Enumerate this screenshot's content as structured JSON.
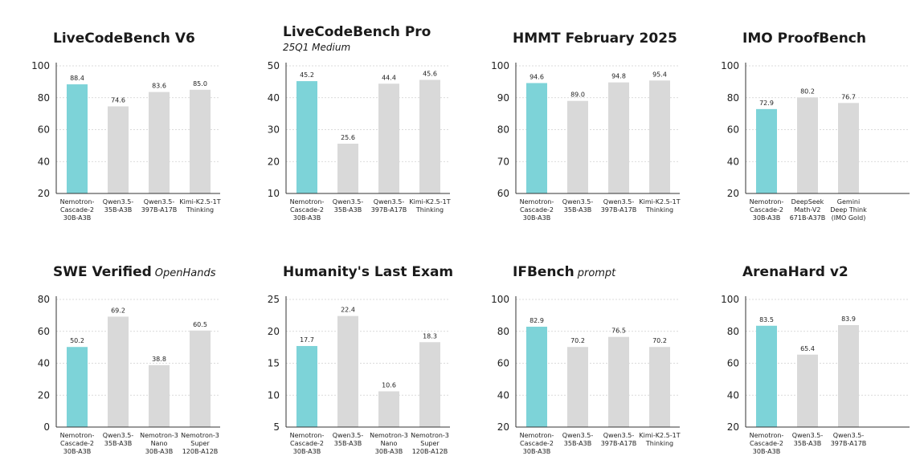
{
  "colors": {
    "highlight": "#7dd3d8",
    "other": "#d9d9d9",
    "grid": "#cfcfcf",
    "axis": "#333333"
  },
  "chart_data": [
    {
      "type": "bar",
      "title": "LiveCodeBench V6",
      "subtitle": "",
      "subtitle_line2": "",
      "categories": [
        [
          "Nemotron-",
          "Cascade-2",
          "30B-A3B"
        ],
        [
          "Qwen3.5-",
          "35B-A3B"
        ],
        [
          "Qwen3.5-",
          "397B-A17B"
        ],
        [
          "Kimi-K2.5-1T",
          "Thinking"
        ]
      ],
      "values": [
        88.4,
        74.6,
        83.6,
        85.0
      ],
      "value_labels": [
        "88.4",
        "74.6",
        "83.6",
        "85.0"
      ],
      "highlight_index": 0,
      "ylim": [
        20,
        100
      ],
      "yticks": [
        20,
        40,
        60,
        80,
        100
      ]
    },
    {
      "type": "bar",
      "title": "LiveCodeBench Pro",
      "subtitle": "",
      "subtitle_line2": "25Q1 Medium",
      "categories": [
        [
          "Nemotron-",
          "Cascade-2",
          "30B-A3B"
        ],
        [
          "Qwen3.5-",
          "35B-A3B"
        ],
        [
          "Qwen3.5-",
          "397B-A17B"
        ],
        [
          "Kimi-K2.5-1T",
          "Thinking"
        ]
      ],
      "values": [
        45.2,
        25.6,
        44.4,
        45.6
      ],
      "value_labels": [
        "45.2",
        "25.6",
        "44.4",
        "45.6"
      ],
      "highlight_index": 0,
      "ylim": [
        10,
        50
      ],
      "yticks": [
        10,
        20,
        30,
        40,
        50
      ]
    },
    {
      "type": "bar",
      "title": "HMMT February 2025",
      "subtitle": "",
      "subtitle_line2": "",
      "categories": [
        [
          "Nemotron-",
          "Cascade-2",
          "30B-A3B"
        ],
        [
          "Qwen3.5-",
          "35B-A3B"
        ],
        [
          "Qwen3.5-",
          "397B-A17B"
        ],
        [
          "Kimi-K2.5-1T",
          "Thinking"
        ]
      ],
      "values": [
        94.6,
        89.0,
        94.8,
        95.4
      ],
      "value_labels": [
        "94.6",
        "89.0",
        "94.8",
        "95.4"
      ],
      "highlight_index": 0,
      "ylim": [
        60,
        100
      ],
      "yticks": [
        60,
        70,
        80,
        90,
        100
      ]
    },
    {
      "type": "bar",
      "title": "IMO ProofBench",
      "subtitle": "",
      "subtitle_line2": "",
      "categories": [
        [
          "Nemotron-",
          "Cascade-2",
          "30B-A3B"
        ],
        [
          "DeepSeek",
          "Math-V2",
          "671B-A37B"
        ],
        [
          "Gemini",
          "Deep Think",
          "(IMO Gold)"
        ]
      ],
      "values": [
        72.9,
        80.2,
        76.7
      ],
      "value_labels": [
        "72.9",
        "80.2",
        "76.7"
      ],
      "highlight_index": 0,
      "ylim": [
        20,
        100
      ],
      "yticks": [
        20,
        40,
        60,
        80,
        100
      ]
    },
    {
      "type": "bar",
      "title": "SWE Verified",
      "subtitle": "OpenHands",
      "subtitle_line2": "",
      "categories": [
        [
          "Nemotron-",
          "Cascade-2",
          "30B-A3B"
        ],
        [
          "Qwen3.5-",
          "35B-A3B"
        ],
        [
          "Nemotron-3",
          "Nano",
          "30B-A3B"
        ],
        [
          "Nemotron-3",
          "Super",
          "120B-A12B"
        ]
      ],
      "values": [
        50.2,
        69.2,
        38.8,
        60.5
      ],
      "value_labels": [
        "50.2",
        "69.2",
        "38.8",
        "60.5"
      ],
      "highlight_index": 0,
      "ylim": [
        0,
        80
      ],
      "yticks": [
        0,
        20,
        40,
        60,
        80
      ]
    },
    {
      "type": "bar",
      "title": "Humanity's Last Exam",
      "subtitle": "",
      "subtitle_line2": "",
      "categories": [
        [
          "Nemotron-",
          "Cascade-2",
          "30B-A3B"
        ],
        [
          "Qwen3.5-",
          "35B-A3B"
        ],
        [
          "Nemotron-3",
          "Nano",
          "30B-A3B"
        ],
        [
          "Nemotron-3",
          "Super",
          "120B-A12B"
        ]
      ],
      "values": [
        17.7,
        22.4,
        10.6,
        18.3
      ],
      "value_labels": [
        "17.7",
        "22.4",
        "10.6",
        "18.3"
      ],
      "highlight_index": 0,
      "ylim": [
        5,
        25
      ],
      "yticks": [
        5,
        10,
        15,
        20,
        25
      ]
    },
    {
      "type": "bar",
      "title": "IFBench",
      "subtitle": "prompt",
      "subtitle_line2": "",
      "categories": [
        [
          "Nemotron-",
          "Cascade-2",
          "30B-A3B"
        ],
        [
          "Qwen3.5-",
          "35B-A3B"
        ],
        [
          "Qwen3.5-",
          "397B-A17B"
        ],
        [
          "Kimi-K2.5-1T",
          "Thinking"
        ]
      ],
      "values": [
        82.9,
        70.2,
        76.5,
        70.2
      ],
      "value_labels": [
        "82.9",
        "70.2",
        "76.5",
        "70.2"
      ],
      "highlight_index": 0,
      "ylim": [
        20,
        100
      ],
      "yticks": [
        20,
        40,
        60,
        80,
        100
      ]
    },
    {
      "type": "bar",
      "title": "ArenaHard v2",
      "subtitle": "",
      "subtitle_line2": "",
      "categories": [
        [
          "Nemotron-",
          "Cascade-2",
          "30B-A3B"
        ],
        [
          "Qwen3.5-",
          "35B-A3B"
        ],
        [
          "Qwen3.5-",
          "397B-A17B"
        ]
      ],
      "values": [
        83.5,
        65.4,
        83.9
      ],
      "value_labels": [
        "83.5",
        "65.4",
        "83.9"
      ],
      "highlight_index": 0,
      "ylim": [
        20,
        100
      ],
      "yticks": [
        20,
        40,
        60,
        80,
        100
      ]
    }
  ]
}
